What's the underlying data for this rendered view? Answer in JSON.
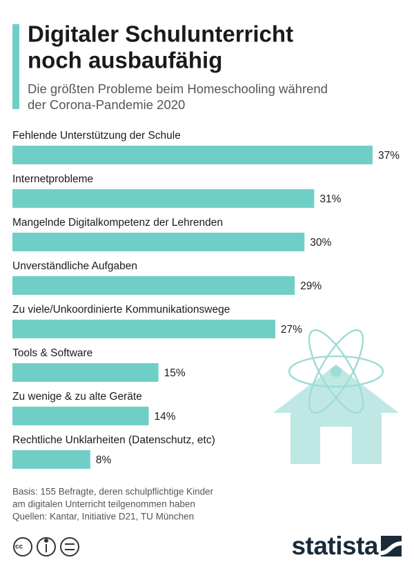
{
  "chart_data": {
    "type": "bar",
    "orientation": "horizontal",
    "title_lines": [
      "Digitaler Schulunterricht",
      "noch ausbaufähig"
    ],
    "subtitle_lines": [
      "Die größten Probleme beim Homeschooling während",
      "der Corona-Pandemie 2020"
    ],
    "categories": [
      "Fehlende Unterstützung der Schule",
      "Internetprobleme",
      "Mangelnde Digitalkompetenz der Lehrenden",
      "Unverständliche Aufgaben",
      "Zu viele/Unkoordinierte Kommunikationswege",
      "Tools & Software",
      "Zu wenige & zu alte Geräte",
      "Rechtliche Unklarheiten (Datenschutz, etc)"
    ],
    "values": [
      37,
      31,
      30,
      29,
      27,
      15,
      14,
      8
    ],
    "value_labels": [
      "37%",
      "31%",
      "30%",
      "29%",
      "27%",
      "15%",
      "14%",
      "8%"
    ],
    "color": "#6fcfc7",
    "notes": [
      "Basis: 155 Befragte, deren schulpflichtige Kinder",
      "am digitalen Unterricht teilgenommen haben",
      "Quellen: Kantar, Initiative D21, TU München"
    ],
    "brand": "statista"
  }
}
